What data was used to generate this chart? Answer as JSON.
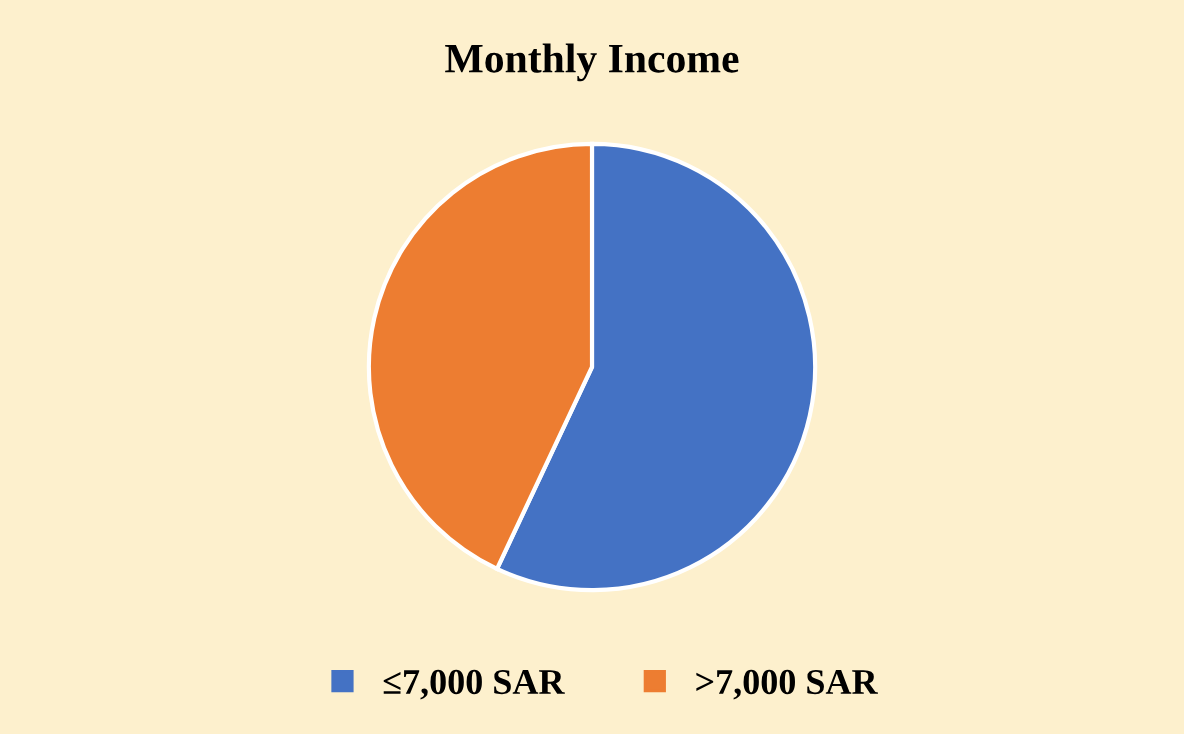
{
  "chart_data": {
    "type": "pie",
    "title": "Monthly Income",
    "categories": [
      "≤7,000 SAR",
      ">7,000 SAR"
    ],
    "values": [
      57,
      43
    ],
    "colors": [
      "#4472c4",
      "#ed7d31"
    ],
    "legend": "bottom"
  }
}
